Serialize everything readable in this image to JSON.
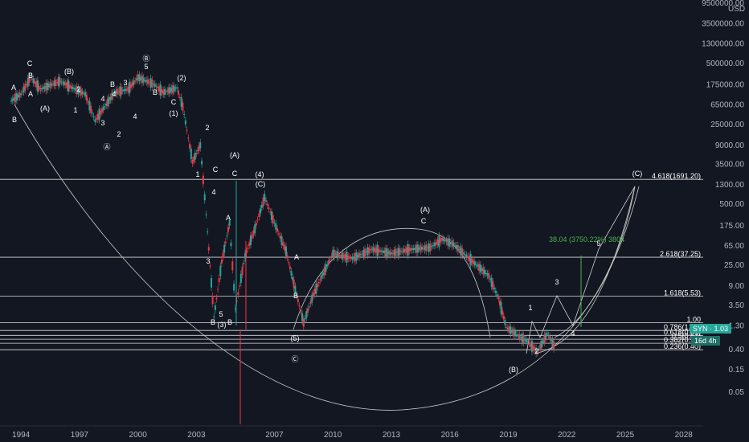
{
  "chart_data": {
    "type": "candlestick",
    "symbol": "SYN",
    "currency": "USD",
    "price_badge": "SYN · 1.03",
    "countdown_badge": "16d 4h",
    "y_scale": "log",
    "grid": false,
    "x_ticks": [
      "1994",
      "1997",
      "2000",
      "2003",
      "2007",
      "2010",
      "2013",
      "2016",
      "2019",
      "2022",
      "2025",
      "2028"
    ],
    "y_ticks": [
      "9500000.00",
      "3500000.00",
      "1300000.00",
      "500000.00",
      "175000.00",
      "65000.00",
      "25000.00",
      "9000.00",
      "3500.00",
      "1300.00",
      "500.00",
      "175.00",
      "65.00",
      "25.00",
      "9.00",
      "3.50",
      "1.30",
      "0.40",
      "0.15",
      "0.05"
    ],
    "fib_levels": [
      {
        "label": "4.618(1691.20)",
        "value": 1691.2
      },
      {
        "label": "2.618(37.25)",
        "value": 37.25
      },
      {
        "label": "1.618(5.53)",
        "value": 5.53
      },
      {
        "label": "1.00",
        "value": 1.5
      },
      {
        "label": "0.786(1.03)",
        "value": 1.03
      },
      {
        "label": "0.618(0.81)",
        "value": 0.81
      },
      {
        "label": "0.5(0.67)",
        "value": 0.67
      },
      {
        "label": "0.382(0.55)",
        "value": 0.55
      },
      {
        "label": "0.236(0.40)",
        "value": 0.4
      }
    ],
    "measure_label": "38.04 (3750.22%) 3804",
    "price_path": [
      [
        "1993.5",
        80000
      ],
      [
        "1994.0",
        110000
      ],
      [
        "1994.5",
        250000
      ],
      [
        "1995.0",
        140000
      ],
      [
        "1996.0",
        210000
      ],
      [
        "1996.5",
        160000
      ],
      [
        "1997.3",
        110000
      ],
      [
        "1997.8",
        30000
      ],
      [
        "1998.3",
        60000
      ],
      [
        "1998.8",
        120000
      ],
      [
        "1999.5",
        140000
      ],
      [
        "2000.0",
        250000
      ],
      [
        "2000.8",
        180000
      ],
      [
        "2001.3",
        120000
      ],
      [
        "2002.0",
        150000
      ],
      [
        "2002.3",
        60000
      ],
      [
        "2002.8",
        4000
      ],
      [
        "2003.2",
        9000
      ],
      [
        "2003.5",
        300
      ],
      [
        "2003.9",
        2
      ],
      [
        "2004.3",
        30
      ],
      [
        "2004.7",
        200
      ],
      [
        "2005.0",
        3
      ],
      [
        "2005.5",
        40
      ],
      [
        "2006.0",
        150
      ],
      [
        "2006.5",
        700
      ],
      [
        "2007.0",
        200
      ],
      [
        "2007.6",
        50
      ],
      [
        "2008.0",
        10
      ],
      [
        "2008.5",
        1.5
      ],
      [
        "2009.0",
        6
      ],
      [
        "2010.0",
        45
      ],
      [
        "2011.0",
        35
      ],
      [
        "2012.0",
        55
      ],
      [
        "2013.0",
        45
      ],
      [
        "2014.0",
        55
      ],
      [
        "2015.0",
        60
      ],
      [
        "2015.6",
        90
      ],
      [
        "2016.2",
        70
      ],
      [
        "2017.0",
        35
      ],
      [
        "2018.0",
        15
      ],
      [
        "2018.5",
        5
      ],
      [
        "2018.9",
        1.2
      ],
      [
        "2019.5",
        0.8
      ],
      [
        "2020.0",
        0.6
      ],
      [
        "2020.5",
        0.35
      ],
      [
        "2021.0",
        0.9
      ],
      [
        "2021.4",
        0.45
      ]
    ],
    "wave_labels": [
      "A",
      "B",
      "C",
      "(A)",
      "(B)",
      "3",
      "4",
      "5",
      "2",
      "1",
      "(C)",
      "(1)",
      "(2)",
      "(3)",
      "(4)",
      "(5)",
      "Ⓐ",
      "Ⓑ",
      "Ⓒ"
    ]
  }
}
